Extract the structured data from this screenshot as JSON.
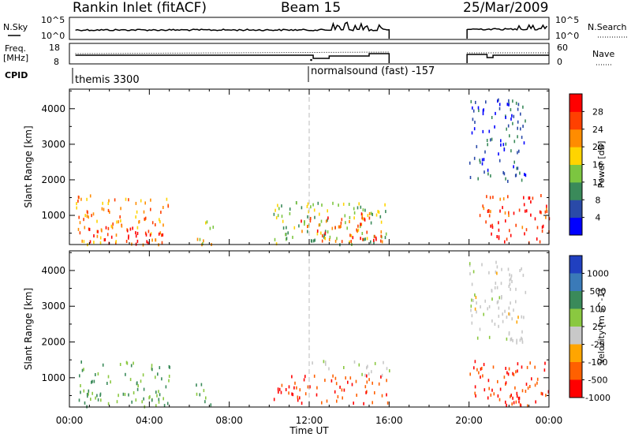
{
  "header": {
    "station": "Rankin Inlet (fitACF)",
    "beam": "Beam 15",
    "date": "25/Mar/2009"
  },
  "status_panels": {
    "nsky_label": "N.Sky",
    "nsky_ticks": [
      "10^5",
      "10^0"
    ],
    "nsearch_label": "N.Search",
    "nsearch_ticks": [
      "10^5",
      "10^0"
    ],
    "freq_label": "Freq.",
    "freq_unit": "[MHz]",
    "freq_ticks": [
      "18",
      "8"
    ],
    "nave_label": "Nave",
    "nave_ticks": [
      "60",
      "0"
    ],
    "cpid_label": "CPID",
    "cpid_entries": [
      {
        "name": "themis 3300",
        "start_hour": 0
      },
      {
        "name": "normalsound (fast) -157",
        "start_hour": 12
      }
    ]
  },
  "chart_data": [
    {
      "type": "heatmap",
      "title": "",
      "xlabel": "Time UT",
      "ylabel": "Slant Range [km]",
      "x_ticks": [
        "00:00",
        "04:00",
        "08:00",
        "12:00",
        "16:00",
        "20:00",
        "00:00"
      ],
      "xlim_hours": [
        0,
        24
      ],
      "y_ticks": [
        1000,
        2000,
        3000,
        4000
      ],
      "ylim": [
        180,
        4550
      ],
      "colorbar": {
        "label": "Power [dB]",
        "ticks": [
          4,
          8,
          12,
          16,
          20,
          24,
          28
        ],
        "range": [
          0,
          32
        ],
        "colors": [
          "#0000ff",
          "#2a4aa8",
          "#3a8a5a",
          "#7cc640",
          "#ffd400",
          "#ff8c00",
          "#ff4000",
          "#ff0000"
        ]
      },
      "data_gaps_hours": [
        [
          16.0,
          19.9
        ]
      ],
      "echo_regions": [
        {
          "t": [
            0.3,
            5.0
          ],
          "r": [
            200,
            1600
          ],
          "value": 22
        },
        {
          "t": [
            0.8,
            4.8
          ],
          "r": [
            200,
            700
          ],
          "value": 30
        },
        {
          "t": [
            6.3,
            7.2
          ],
          "r": [
            200,
            900
          ],
          "value": 18
        },
        {
          "t": [
            10.2,
            16.0
          ],
          "r": [
            200,
            1400
          ],
          "value": 14
        },
        {
          "t": [
            11.5,
            15.8
          ],
          "r": [
            300,
            1100
          ],
          "value": 26
        },
        {
          "t": [
            20.0,
            22.8
          ],
          "r": [
            2000,
            4300
          ],
          "value": 6
        },
        {
          "t": [
            20.5,
            24.0
          ],
          "r": [
            250,
            1600
          ],
          "value": 28
        }
      ]
    },
    {
      "type": "heatmap",
      "title": "",
      "xlabel": "Time UT",
      "ylabel": "Slant Range [km]",
      "x_ticks": [
        "00:00",
        "04:00",
        "08:00",
        "12:00",
        "16:00",
        "20:00",
        "00:00"
      ],
      "xlim_hours": [
        0,
        24
      ],
      "y_ticks": [
        1000,
        2000,
        3000,
        4000
      ],
      "ylim": [
        180,
        4550
      ],
      "colorbar": {
        "label": "Velocity [m s^-1]",
        "ticks": [
          1000,
          500,
          100,
          25,
          -25,
          -100,
          -500,
          -1000
        ],
        "colors": [
          "#2040c0",
          "#3a7ab8",
          "#3a8a5a",
          "#8ac840",
          "#c8c8c8",
          "#ffa500",
          "#ff6000",
          "#ff0000"
        ]
      },
      "data_gaps_hours": [
        [
          16.0,
          19.9
        ]
      ],
      "echo_regions": [
        {
          "t": [
            0.3,
            5.0
          ],
          "r": [
            200,
            1500
          ],
          "value": 100
        },
        {
          "t": [
            6.3,
            7.2
          ],
          "r": [
            200,
            900
          ],
          "value": 100
        },
        {
          "t": [
            10.2,
            16.0
          ],
          "r": [
            300,
            1100
          ],
          "value": -500
        },
        {
          "t": [
            12.0,
            16.0
          ],
          "r": [
            1100,
            1500
          ],
          "value": 25
        },
        {
          "t": [
            20.0,
            24.0
          ],
          "r": [
            250,
            1500
          ],
          "value": -500
        },
        {
          "t": [
            20.0,
            22.8
          ],
          "r": [
            2000,
            4300
          ],
          "value": 0
        }
      ]
    }
  ]
}
